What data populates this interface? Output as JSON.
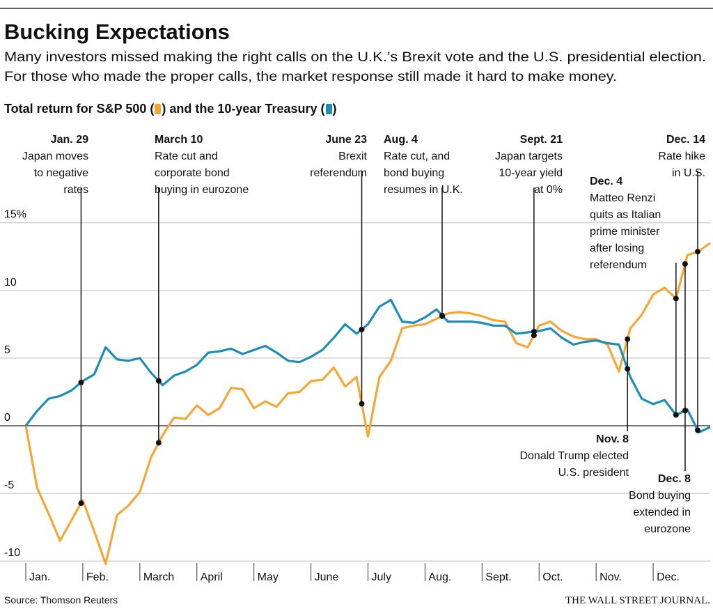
{
  "chart_data": {
    "type": "line",
    "title": "Bucking Expectations",
    "subtitle": [
      "Many investors missed making the right calls on the U.K.’s Brexit vote and the U.S. presidential election.",
      "For those who made the proper calls, the market response still made it hard to make money."
    ],
    "legend_text": [
      "Total return for ",
      " (",
      ") and the ",
      " (",
      ")"
    ],
    "source": "Source: Thomson Reuters",
    "publisher": "THE WALL STREET JOURNAL.",
    "x": [
      0,
      0.2,
      0.4,
      0.6,
      0.8,
      1,
      1.2,
      1.4,
      1.6,
      1.8,
      2,
      2.2,
      2.4,
      2.6,
      2.8,
      3,
      3.2,
      3.4,
      3.6,
      3.8,
      4,
      4.2,
      4.4,
      4.6,
      4.8,
      5,
      5.2,
      5.4,
      5.6,
      5.8,
      6,
      6.2,
      6.4,
      6.6,
      6.8,
      7,
      7.2,
      7.4,
      7.6,
      7.8,
      8,
      8.2,
      8.4,
      8.6,
      8.8,
      9,
      9.2,
      9.4,
      9.6,
      9.8,
      10,
      10.2,
      10.4,
      10.6,
      10.8,
      11,
      11.2,
      11.4,
      11.6,
      11.8,
      12
    ],
    "series": [
      {
        "name": "S&P 500",
        "color": "#f7a634",
        "values": [
          0,
          -4.6,
          -6.5,
          -8.5,
          -7.0,
          -5.5,
          -7.8,
          -10.2,
          -6.6,
          -5.9,
          -4.9,
          -2.3,
          -0.7,
          0.6,
          0.5,
          1.5,
          0.8,
          1.3,
          2.8,
          2.7,
          1.3,
          1.8,
          1.4,
          2.4,
          2.5,
          3.3,
          3.4,
          4.3,
          2.9,
          3.6,
          -0.8,
          3.6,
          4.8,
          7.2,
          7.4,
          7.5,
          7.9,
          8.3,
          8.4,
          8.3,
          8.1,
          7.8,
          7.7,
          6.1,
          5.8,
          7.4,
          7.7,
          7.0,
          6.6,
          6.4,
          6.4,
          6.0,
          4.0,
          7.2,
          8.2,
          9.7,
          10.2,
          9.4,
          12.6,
          12.9,
          13.5
        ]
      },
      {
        "name": "10-year Treasury",
        "color": "#1b8db8",
        "values": [
          0,
          1.1,
          2.0,
          2.2,
          2.6,
          3.3,
          3.8,
          5.8,
          4.9,
          4.8,
          5.0,
          3.9,
          3.0,
          3.7,
          4.0,
          4.5,
          5.4,
          5.5,
          5.7,
          5.3,
          5.6,
          5.9,
          5.4,
          4.8,
          4.7,
          5.1,
          5.6,
          6.5,
          7.5,
          6.8,
          7.5,
          8.8,
          9.3,
          7.7,
          7.6,
          8.0,
          8.6,
          7.7,
          7.7,
          7.7,
          7.6,
          7.4,
          7.4,
          6.8,
          6.9,
          7.0,
          7.2,
          6.5,
          6.0,
          6.2,
          6.3,
          6.1,
          6.0,
          3.6,
          2.0,
          1.6,
          1.9,
          0.8,
          1.2,
          -0.5,
          -0.1
        ]
      }
    ],
    "xlim": [
      0,
      12
    ],
    "xticks": [
      {
        "value": 0,
        "label": "Jan."
      },
      {
        "value": 1,
        "label": "Feb."
      },
      {
        "value": 2,
        "label": "March"
      },
      {
        "value": 3,
        "label": "April"
      },
      {
        "value": 4,
        "label": "May"
      },
      {
        "value": 5,
        "label": "June"
      },
      {
        "value": 6,
        "label": "July"
      },
      {
        "value": 7,
        "label": "Aug."
      },
      {
        "value": 8,
        "label": "Sept."
      },
      {
        "value": 9,
        "label": "Oct."
      },
      {
        "value": 10,
        "label": "Nov."
      },
      {
        "value": 11,
        "label": "Dec."
      }
    ],
    "ylim": [
      -10.3,
      15.5
    ],
    "yticks": [
      {
        "value": 15,
        "label": "15%"
      },
      10,
      5,
      0,
      -5,
      -10
    ],
    "grid": true,
    "annotations": [
      {
        "x": 0.97,
        "date": "Jan. 29",
        "text": [
          "Japan moves",
          "to negative",
          "rates"
        ]
      },
      {
        "x": 2.33,
        "date": "March 10",
        "text": [
          "Rate cut and",
          "corporate bond",
          "buying in eurozone"
        ]
      },
      {
        "x": 5.89,
        "date": "June 23",
        "text": [
          "Brexit",
          "referendum"
        ]
      },
      {
        "x": 7.3,
        "date": "Aug. 4",
        "text": [
          "Rate cut, and",
          "bond buying",
          "resumes in U.K."
        ]
      },
      {
        "x": 8.91,
        "date": "Sept. 21",
        "text": [
          "Japan targets",
          "10-year yield",
          "at 0%"
        ]
      },
      {
        "x": 10.55,
        "date": "Nov. 8",
        "text": [
          "Donald Trump elected",
          "U.S. president"
        ]
      },
      {
        "x": 11.4,
        "date": "Dec. 4",
        "text": [
          "Matteo Renzi",
          "quits as Italian",
          "prime minister",
          "after losing",
          "referendum"
        ]
      },
      {
        "x": 11.56,
        "date": "Dec. 8",
        "text": [
          "Bond buying",
          "extended in",
          "eurozone"
        ]
      },
      {
        "x": 11.78,
        "date": "Dec. 14",
        "text": [
          "Rate hike",
          "in U.S."
        ]
      }
    ]
  }
}
